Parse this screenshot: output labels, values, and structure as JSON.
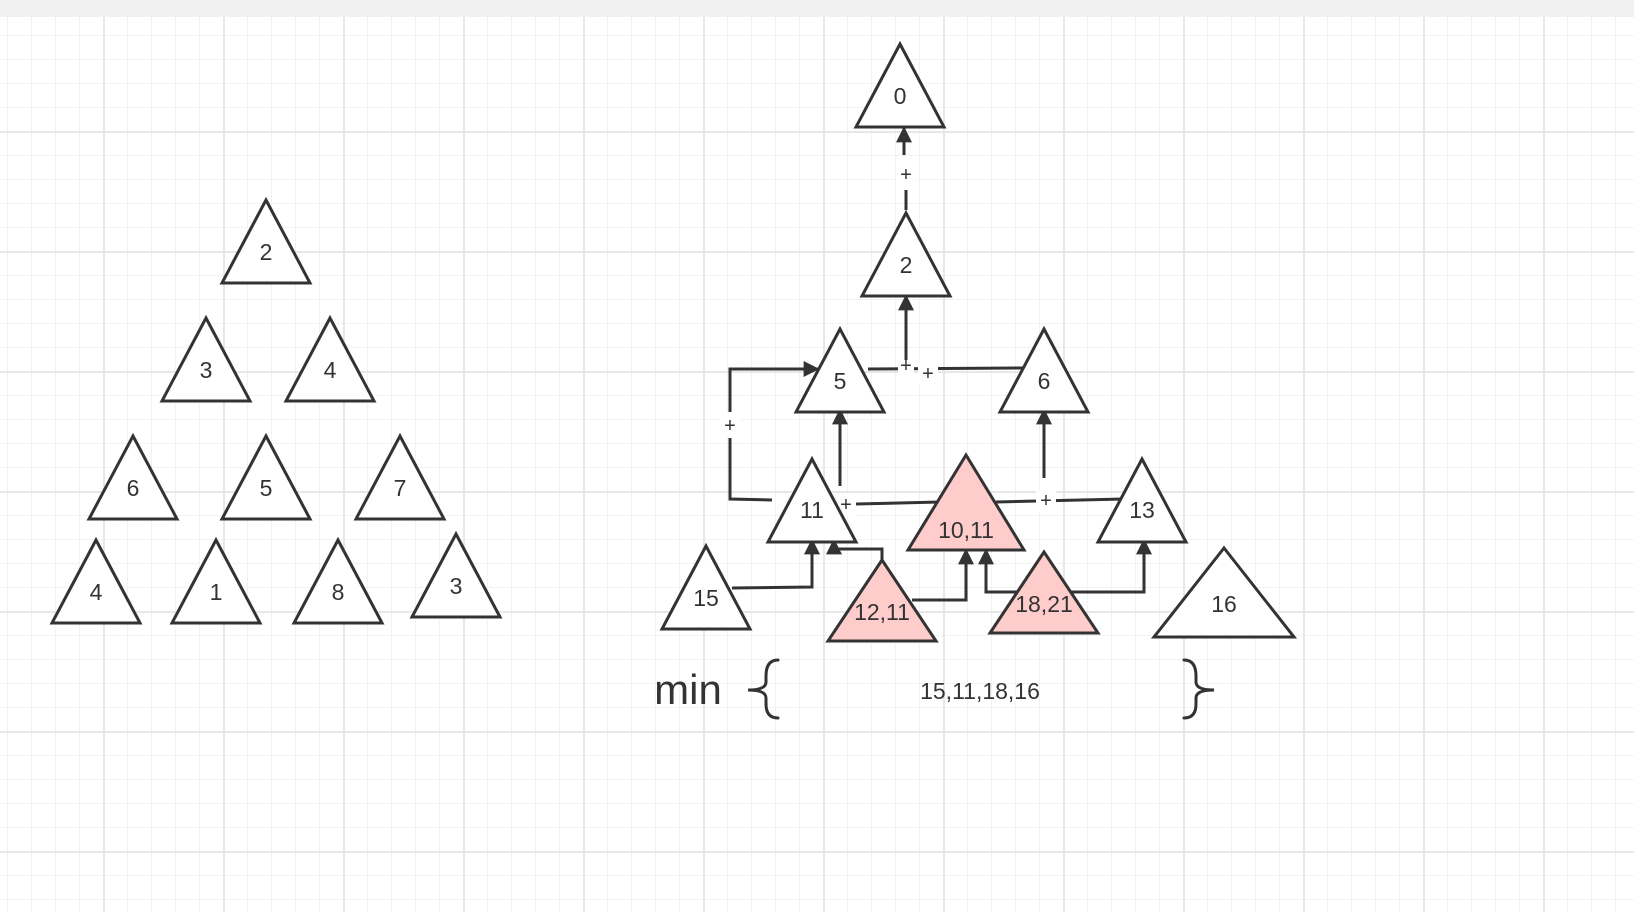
{
  "colors": {
    "stroke": "#333333",
    "node_fill": "#ffffff",
    "highlight_fill": "#ffcccc",
    "grid": "#e7e7e7"
  },
  "left_tree": {
    "rows": [
      [
        "2"
      ],
      [
        "3",
        "4"
      ],
      [
        "6",
        "5",
        "7"
      ],
      [
        "4",
        "1",
        "8",
        "3"
      ]
    ]
  },
  "right_tree": {
    "nodes": {
      "root": "0",
      "n2": "2",
      "n5": "5",
      "n6": "6",
      "n11": "11",
      "n1011": "10,11",
      "n13": "13",
      "n15": "15",
      "n1211": "12,11",
      "n1821": "18,21",
      "n16": "16"
    },
    "edge_labels": {
      "root_plus": "+",
      "left_plus": "+",
      "mid_plus_a": "+",
      "mid_plus_b": "+",
      "low_plus_left": "+",
      "low_plus_right": "+"
    },
    "min_label": "min",
    "min_set": "15,11,18,16"
  }
}
